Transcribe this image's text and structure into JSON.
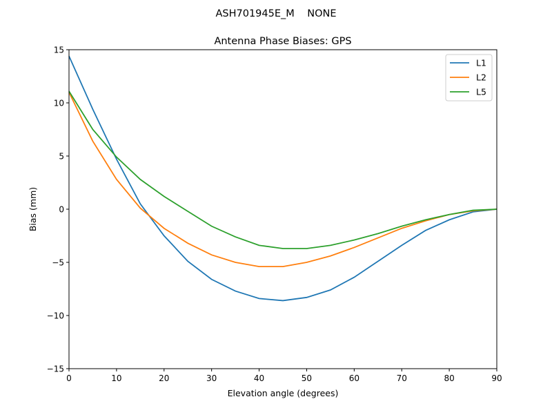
{
  "chart_data": {
    "type": "line",
    "suptitle": "ASH701945E_M    NONE",
    "title": "Antenna Phase Biases: GPS",
    "xlabel": "Elevation angle (degrees)",
    "ylabel": "Bias (mm)",
    "xlim": [
      0,
      90
    ],
    "ylim": [
      -15,
      15
    ],
    "xticks": [
      0,
      10,
      20,
      30,
      40,
      50,
      60,
      70,
      80,
      90
    ],
    "yticks": [
      -15,
      -10,
      -5,
      0,
      5,
      10,
      15
    ],
    "ytick_labels": [
      "−15",
      "−10",
      "−5",
      "0",
      "5",
      "10",
      "15"
    ],
    "grid": false,
    "legend_position": "top-right",
    "x": [
      0,
      5,
      10,
      15,
      20,
      25,
      30,
      35,
      40,
      45,
      50,
      55,
      60,
      65,
      70,
      75,
      80,
      85,
      90
    ],
    "series": [
      {
        "name": "L1",
        "color": "#1f77b4",
        "values": [
          14.4,
          9.4,
          4.7,
          0.5,
          -2.5,
          -4.9,
          -6.6,
          -7.7,
          -8.4,
          -8.6,
          -8.3,
          -7.6,
          -6.4,
          -4.9,
          -3.4,
          -2.0,
          -1.0,
          -0.25,
          0
        ]
      },
      {
        "name": "L2",
        "color": "#ff7f0e",
        "values": [
          11.0,
          6.4,
          2.8,
          0.1,
          -1.8,
          -3.2,
          -4.3,
          -5.0,
          -5.4,
          -5.4,
          -5.0,
          -4.4,
          -3.6,
          -2.7,
          -1.8,
          -1.1,
          -0.5,
          -0.15,
          0
        ]
      },
      {
        "name": "L5",
        "color": "#2ca02c",
        "values": [
          11.1,
          7.5,
          4.9,
          2.8,
          1.2,
          -0.2,
          -1.6,
          -2.6,
          -3.4,
          -3.7,
          -3.7,
          -3.4,
          -2.9,
          -2.3,
          -1.6,
          -1.0,
          -0.5,
          -0.1,
          0
        ]
      }
    ]
  }
}
